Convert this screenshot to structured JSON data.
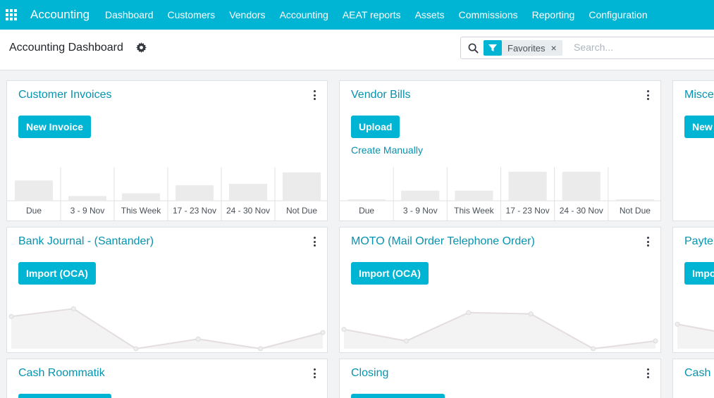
{
  "navbar": {
    "brand": "Accounting",
    "menu": [
      "Dashboard",
      "Customers",
      "Vendors",
      "Accounting",
      "AEAT reports",
      "Assets",
      "Commissions",
      "Reporting",
      "Configuration"
    ]
  },
  "control_panel": {
    "title": "Accounting Dashboard",
    "search": {
      "facet": "Favorites",
      "facet_close": "×",
      "placeholder": "Search..."
    }
  },
  "cards": {
    "customer_invoices": {
      "title": "Customer Invoices",
      "button": "New Invoice",
      "chart_data": {
        "type": "bar",
        "categories": [
          "Due",
          "3 - 9 Nov",
          "This Week",
          "17 - 23 Nov",
          "24 - 30 Nov",
          "Not Due"
        ],
        "values": [
          30,
          7,
          11,
          23,
          25,
          42
        ],
        "ylim": [
          0,
          48
        ]
      }
    },
    "vendor_bills": {
      "title": "Vendor Bills",
      "button": "Upload",
      "link": "Create Manually",
      "chart_data": {
        "type": "bar",
        "categories": [
          "Due",
          "3 - 9 Nov",
          "This Week",
          "17 - 23 Nov",
          "24 - 30 Nov",
          "Not Due"
        ],
        "values": [
          2,
          15,
          15,
          43,
          43,
          2
        ],
        "ylim": [
          0,
          48
        ]
      }
    },
    "misc": {
      "title": "Misce",
      "button": "New"
    },
    "bank_journal": {
      "title": "Bank Journal - (Santander)",
      "button": "Import (OCA)",
      "chart_data": {
        "type": "area",
        "values": [
          50,
          62,
          0,
          15,
          0,
          25
        ],
        "ylim": [
          0,
          70
        ]
      }
    },
    "moto": {
      "title": "MOTO (Mail Order Telephone Order)",
      "button": "Import (OCA)",
      "chart_data": {
        "type": "area",
        "values": [
          30,
          12,
          56,
          54,
          0,
          12
        ],
        "ylim": [
          0,
          70
        ]
      }
    },
    "paytef": {
      "title": "Payte",
      "button": "Impo",
      "chart_data": {
        "type": "area",
        "values": [
          38,
          20
        ],
        "ylim": [
          0,
          70
        ]
      }
    },
    "cash_roommatik": {
      "title": "Cash Roommatik"
    },
    "closing": {
      "title": "Closing"
    },
    "cash_partial": {
      "title": "Cash"
    }
  },
  "colors": {
    "brand": "#00b4d4",
    "title": "#0693b0",
    "bar": "#ebebeb",
    "line": "#e4dde0"
  }
}
